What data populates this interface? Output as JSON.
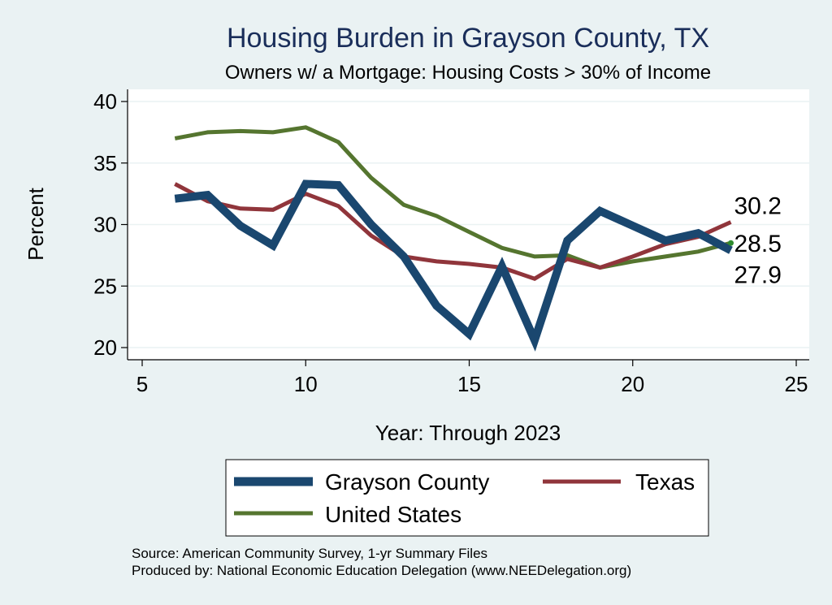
{
  "chart_data": {
    "type": "line",
    "title": "Housing Burden in Grayson County, TX",
    "subtitle": "Owners w/ a Mortgage: Housing Costs > 30% of Income",
    "xlabel": "Year: Through 2023",
    "ylabel": "Percent",
    "xlim": [
      5,
      25
    ],
    "ylim": [
      20,
      40
    ],
    "xticks": [
      "5",
      "10",
      "15",
      "20",
      "25"
    ],
    "yticks": [
      "20",
      "25",
      "30",
      "35",
      "40"
    ],
    "series": [
      {
        "name": "Grayson County",
        "color": "#1a476f",
        "x": [
          6,
          7,
          8,
          9,
          10,
          11,
          12,
          13,
          14,
          15,
          16,
          17,
          18,
          19,
          20,
          21,
          22,
          23
        ],
        "values": [
          32.1,
          32.4,
          29.9,
          28.3,
          33.3,
          33.2,
          30.0,
          27.4,
          23.4,
          21.1,
          26.6,
          20.6,
          28.7,
          31.1,
          29.9,
          28.7,
          29.3,
          27.9
        ],
        "end_label": "27.9"
      },
      {
        "name": "Texas",
        "color": "#90353b",
        "x": [
          6,
          7,
          8,
          9,
          10,
          11,
          12,
          13,
          14,
          15,
          16,
          17,
          18,
          19,
          20,
          21,
          22,
          23
        ],
        "values": [
          33.3,
          31.9,
          31.3,
          31.2,
          32.5,
          31.5,
          29.1,
          27.4,
          27.0,
          26.8,
          26.5,
          25.6,
          27.2,
          26.5,
          27.4,
          28.4,
          29.0,
          30.2
        ],
        "end_label": "30.2"
      },
      {
        "name": "United States",
        "color": "#55752f",
        "x": [
          6,
          7,
          8,
          9,
          10,
          11,
          12,
          13,
          14,
          15,
          16,
          17,
          18,
          19,
          20,
          21,
          22,
          23
        ],
        "values": [
          37.0,
          37.5,
          37.6,
          37.5,
          37.9,
          36.7,
          33.8,
          31.6,
          30.7,
          29.4,
          28.1,
          27.4,
          27.5,
          26.5,
          27.0,
          27.4,
          27.8,
          28.5
        ],
        "end_label": "28.5"
      }
    ],
    "legend": {
      "position": "bottom",
      "entries": [
        "Grayson County",
        "Texas",
        "United States"
      ]
    },
    "notes": [
      "Source: American Community Survey, 1-yr Summary Files",
      "Produced by: National Economic Education Delegation (www.NEEDelegation.org)"
    ]
  },
  "colors": {
    "background": "#eaf2f3",
    "plot_background": "#ffffff",
    "title": "#1a2e5a",
    "text": "#000000",
    "grid": "#eaf2f3"
  }
}
